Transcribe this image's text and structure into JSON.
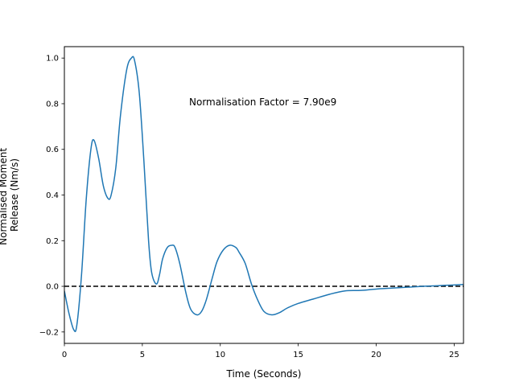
{
  "chart_data": {
    "type": "line",
    "title": "",
    "xlabel": "Time (Seconds)",
    "ylabel": [
      "Normalised Moment",
      "Release (Nm/s)"
    ],
    "xlim": [
      0,
      25.6
    ],
    "ylim": [
      -0.25,
      1.05
    ],
    "xticks": [
      0,
      5,
      10,
      15,
      20,
      25
    ],
    "xtick_labels": [
      "0",
      "5",
      "10",
      "15",
      "20",
      "25"
    ],
    "yticks": [
      -0.2,
      0.0,
      0.2,
      0.4,
      0.6,
      0.8,
      1.0
    ],
    "ytick_labels": [
      "−0.2",
      "0.0",
      "0.2",
      "0.4",
      "0.6",
      "0.8",
      "1.0"
    ],
    "grid": false,
    "annotation": "Normalisation Factor = 7.90e9",
    "reference_line": {
      "y": 0,
      "style": "dashed",
      "color": "#000000"
    },
    "series": [
      {
        "color": "#1f77b4",
        "x": [
          0,
          0.3,
          0.6,
          0.8,
          1.1,
          1.4,
          1.7,
          1.9,
          2.2,
          2.5,
          2.8,
          3.0,
          3.3,
          3.6,
          4.0,
          4.3,
          4.5,
          4.8,
          5.1,
          5.4,
          5.6,
          5.9,
          6.1,
          6.3,
          6.6,
          6.9,
          7.1,
          7.4,
          7.8,
          8.1,
          8.5,
          8.8,
          9.1,
          9.5,
          9.8,
          10.2,
          10.6,
          11.0,
          11.2,
          11.6,
          12.0,
          12.4,
          12.8,
          13.3,
          13.8,
          14.3,
          15.0,
          16.0,
          17.0,
          18.0,
          19.0,
          20.0,
          21.0,
          22.0,
          23.0,
          24.0,
          25.0,
          25.6
        ],
        "y": [
          -0.02,
          -0.12,
          -0.19,
          -0.17,
          0.05,
          0.38,
          0.6,
          0.64,
          0.56,
          0.44,
          0.385,
          0.4,
          0.52,
          0.75,
          0.95,
          1.0,
          0.99,
          0.85,
          0.55,
          0.2,
          0.06,
          0.01,
          0.05,
          0.12,
          0.17,
          0.18,
          0.17,
          0.1,
          -0.03,
          -0.1,
          -0.125,
          -0.11,
          -0.06,
          0.04,
          0.11,
          0.16,
          0.18,
          0.17,
          0.15,
          0.1,
          0.01,
          -0.06,
          -0.11,
          -0.125,
          -0.115,
          -0.095,
          -0.075,
          -0.055,
          -0.035,
          -0.02,
          -0.018,
          -0.012,
          -0.008,
          -0.004,
          0.0,
          0.003,
          0.006,
          0.008
        ]
      }
    ]
  }
}
